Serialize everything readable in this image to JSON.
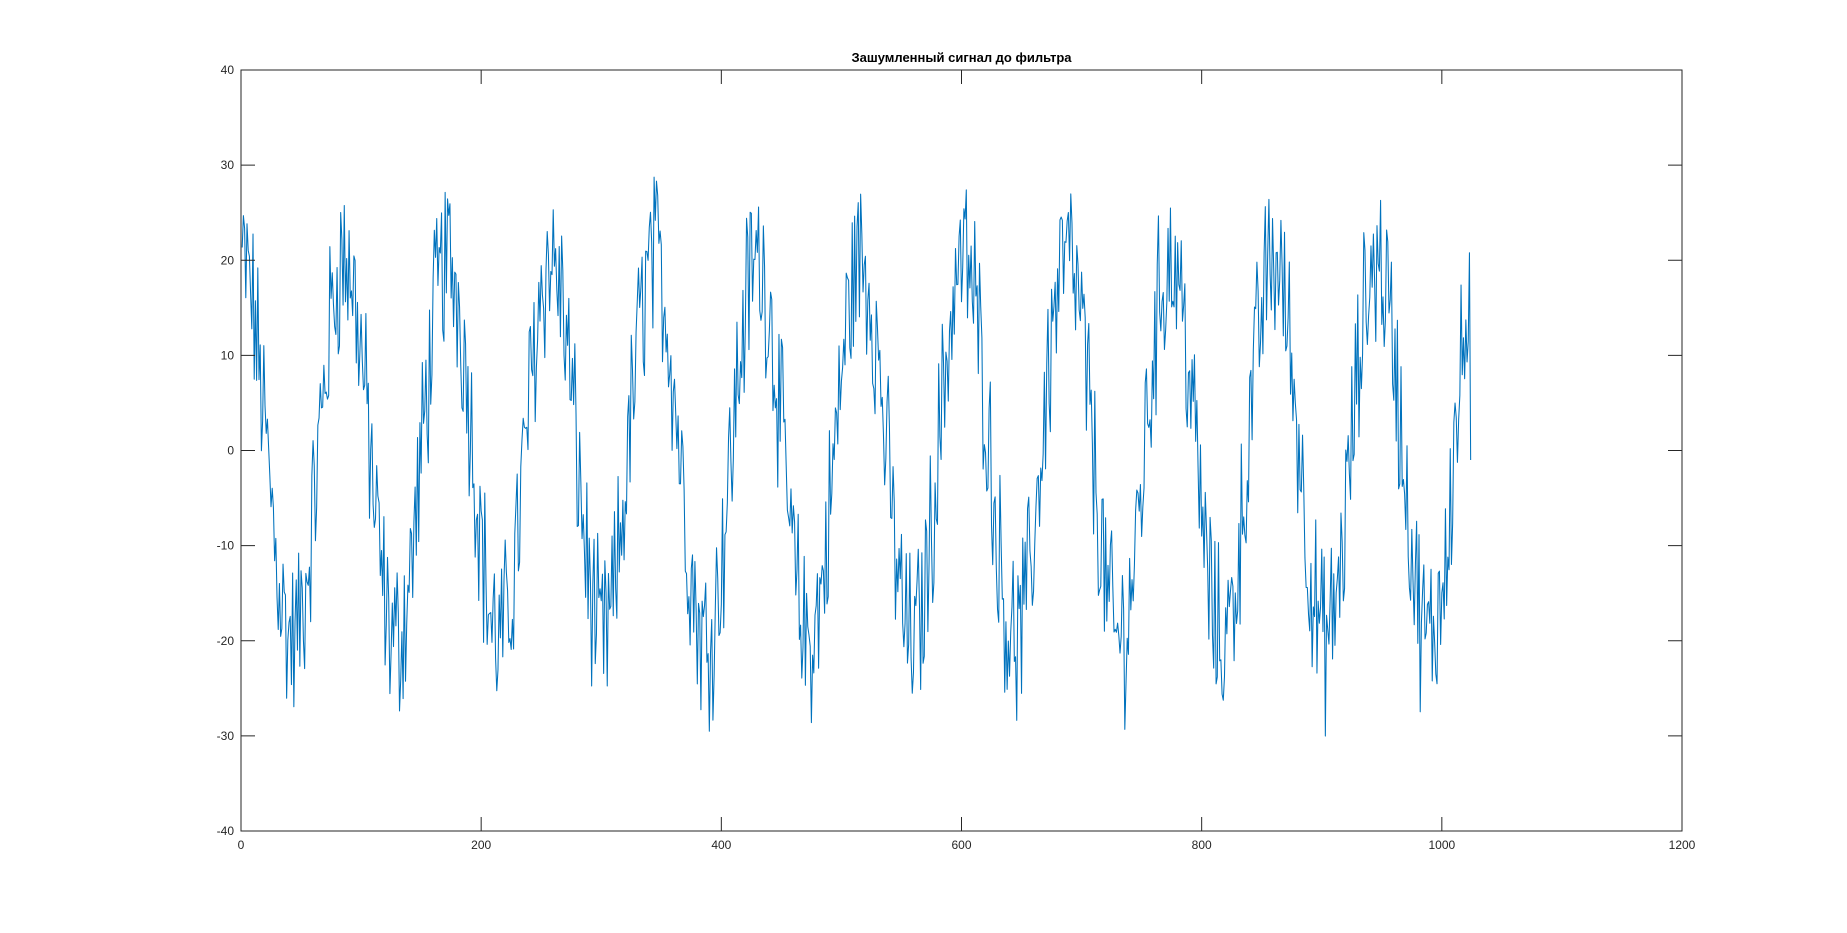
{
  "chart_data": {
    "type": "line",
    "title": "Зашумленный сигнал до фильтра",
    "xlabel": "",
    "ylabel": "",
    "xlim": [
      0,
      1200
    ],
    "ylim": [
      -40,
      40
    ],
    "x_ticks": [
      0,
      200,
      400,
      600,
      800,
      1000,
      1200
    ],
    "y_ticks": [
      -40,
      -30,
      -20,
      -10,
      0,
      10,
      20,
      30,
      40
    ],
    "x_tick_labels": [
      "0",
      "200",
      "400",
      "600",
      "800",
      "1000",
      "1200"
    ],
    "y_tick_labels": [
      "-40",
      "-30",
      "-20",
      "-10",
      "0",
      "10",
      "20",
      "30",
      "40"
    ],
    "grid": false,
    "box": true,
    "series": [
      {
        "color": "#0072BD",
        "x_start": 1,
        "x_step": 1,
        "points": 1024,
        "signal": {
          "amplitude": 20,
          "period_samples": 86,
          "phase_offset_samples": 0,
          "noise_amplitude": 8
        },
        "observed": {
          "y_min": -34.5,
          "y_max": 33.3,
          "last_value": -1
        }
      }
    ]
  },
  "colors": {
    "line": "#0072BD",
    "axes": "#262626",
    "background": "#ffffff"
  }
}
